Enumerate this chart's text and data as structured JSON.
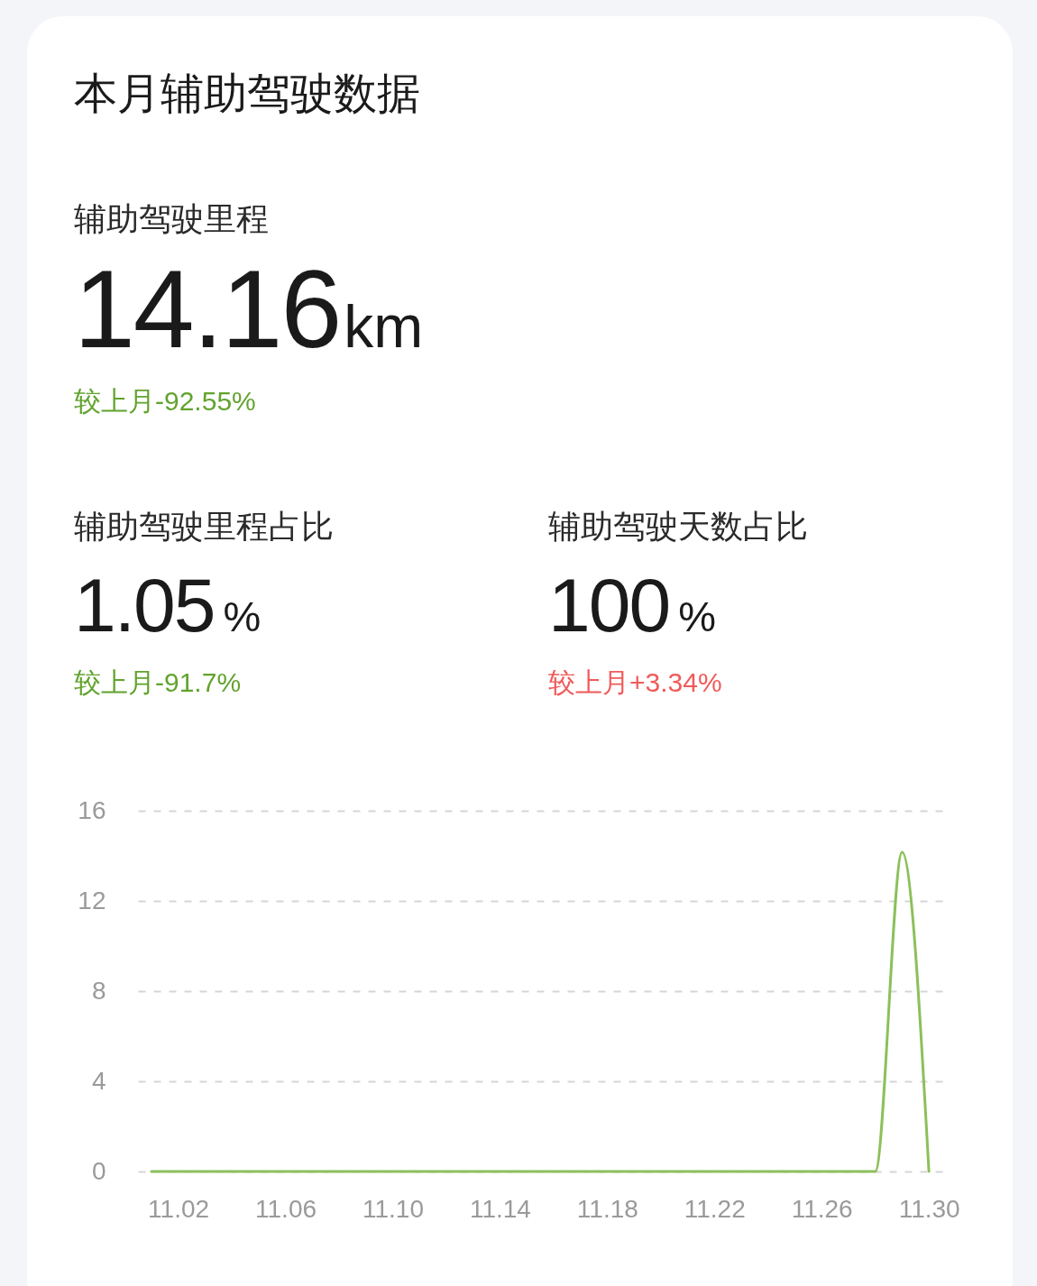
{
  "chart_data": {
    "type": "line",
    "title": "本月辅助驾驶数据",
    "annotations": [
      "辅助驾驶里程",
      "14.16km",
      "较上月-92.55%",
      "辅助驾驶里程占比",
      "1.05%",
      "较上月-91.7%",
      "辅助驾驶天数占比",
      "100%",
      "较上月+3.34%"
    ],
    "categories": [
      null,
      "11.02",
      null,
      null,
      null,
      "11.06",
      null,
      null,
      null,
      "11.10",
      null,
      null,
      null,
      "11.14",
      null,
      null,
      null,
      "11.18",
      null,
      null,
      null,
      "11.22",
      null,
      null,
      null,
      "11.26",
      null,
      null,
      null,
      "11.30"
    ],
    "series": [
      {
        "color": "#8cc05a",
        "values": [
          0,
          0,
          0,
          0,
          0,
          0,
          0,
          0,
          0,
          0,
          0,
          0,
          0,
          0,
          0,
          0,
          0,
          0,
          0,
          0,
          0,
          0,
          0,
          0,
          0,
          0,
          0,
          0,
          14.16,
          0
        ]
      }
    ],
    "ylim": [
      0,
      16
    ],
    "yticks": [
      0,
      4,
      8,
      12,
      16
    ],
    "grid": "y"
  }
}
